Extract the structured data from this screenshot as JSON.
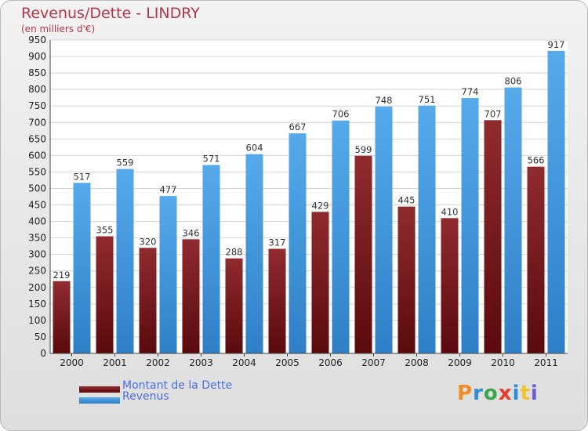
{
  "header": {
    "title": "Revenus/Dette - LINDRY",
    "subtitle": "(en milliers d'€)"
  },
  "legend": {
    "items": [
      {
        "label": "Montant de la Dette",
        "color": "#7a1e22"
      },
      {
        "label": "Revenus",
        "color": "#4a9ee3"
      }
    ]
  },
  "logo": {
    "text": "Proxiti",
    "colors": [
      "#f28c28",
      "#2e8bd8",
      "#3aa84a",
      "#e63b2e",
      "#2e8bd8",
      "#f2c12e",
      "#6a5bd8"
    ]
  },
  "chart_data": {
    "type": "bar",
    "categories": [
      "2000",
      "2001",
      "2002",
      "2003",
      "2004",
      "2005",
      "2006",
      "2007",
      "2008",
      "2009",
      "2010",
      "2011"
    ],
    "series": [
      {
        "name": "Montant de la Dette",
        "color": "#7a1e22",
        "values": [
          219,
          355,
          320,
          346,
          288,
          317,
          429,
          599,
          445,
          410,
          707,
          566
        ]
      },
      {
        "name": "Revenus",
        "color": "#4a9ee3",
        "values": [
          517,
          559,
          477,
          571,
          604,
          667,
          706,
          748,
          751,
          774,
          806,
          917
        ]
      }
    ],
    "title": "Revenus/Dette - LINDRY",
    "subtitle": "(en milliers d'€)",
    "xlabel": "",
    "ylabel": "",
    "ylim": [
      0,
      950
    ],
    "ytick_step": 50,
    "grid": true,
    "legend_position": "bottom-left"
  }
}
